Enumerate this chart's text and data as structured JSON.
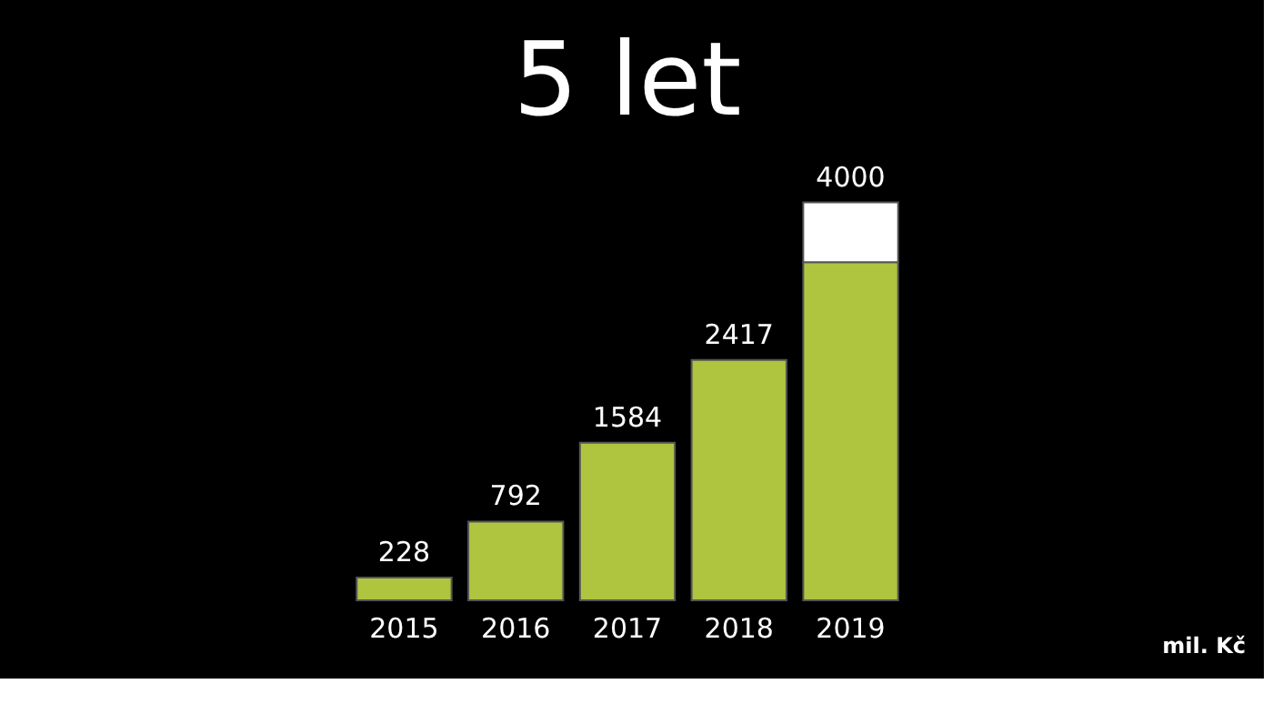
{
  "chart_data": {
    "type": "bar",
    "title": "5 let",
    "categories": [
      "2015",
      "2016",
      "2017",
      "2018",
      "2019"
    ],
    "stacked": true,
    "series": [
      {
        "color": "#afc43f",
        "values": [
          228,
          792,
          1584,
          2417,
          3400
        ],
        "value_labels": [
          "228",
          "792",
          "1584",
          "2417",
          null
        ]
      },
      {
        "color": "#ffffff",
        "values": [
          null,
          null,
          null,
          null,
          600
        ]
      }
    ],
    "totals": [
      null,
      null,
      null,
      null,
      "4000"
    ],
    "annotations": [
      "mil. Kč"
    ]
  }
}
